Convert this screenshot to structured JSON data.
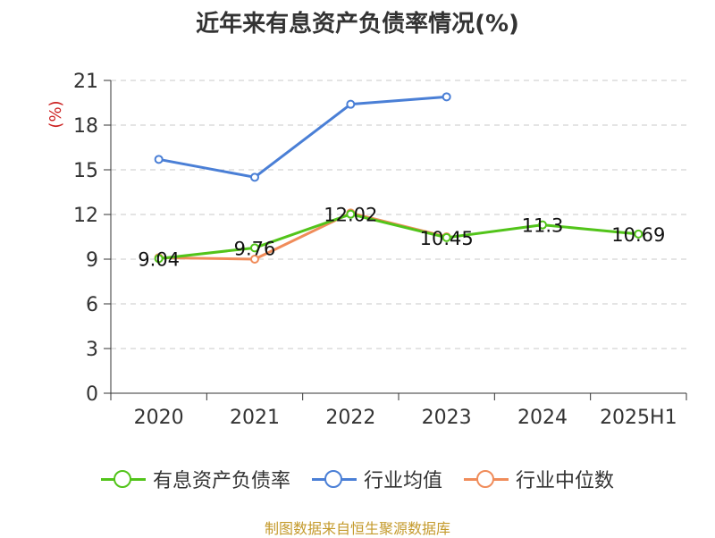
{
  "title": "近年来有息资产负债率情况(%)",
  "source": "制图数据来自恒生聚源数据库",
  "chart_data": {
    "type": "line",
    "title": "近年来有息资产负债率情况(%)",
    "ylabel": "(%)",
    "xlabel": "",
    "categories": [
      "2020",
      "2021",
      "2022",
      "2023",
      "2024",
      "2025H1"
    ],
    "ylim": [
      0,
      21
    ],
    "yticks": [
      0,
      3,
      6,
      9,
      12,
      15,
      18,
      21
    ],
    "grid": true,
    "legend_position": "bottom",
    "series": [
      {
        "name": "有息资产负债率",
        "color": "#52c41a",
        "values": [
          9.04,
          9.76,
          12.02,
          10.45,
          11.3,
          10.69
        ],
        "labels": [
          "9.04",
          "9.76",
          "12.02",
          "10.45",
          "11.3",
          "10.69"
        ]
      },
      {
        "name": "行业均值",
        "color": "#4a7fd6",
        "values": [
          15.7,
          14.5,
          19.4,
          19.9,
          null,
          null
        ]
      },
      {
        "name": "行业中位数",
        "color": "#f08c5a",
        "values": [
          9.1,
          9.0,
          12.1,
          10.5,
          null,
          null
        ]
      }
    ]
  }
}
